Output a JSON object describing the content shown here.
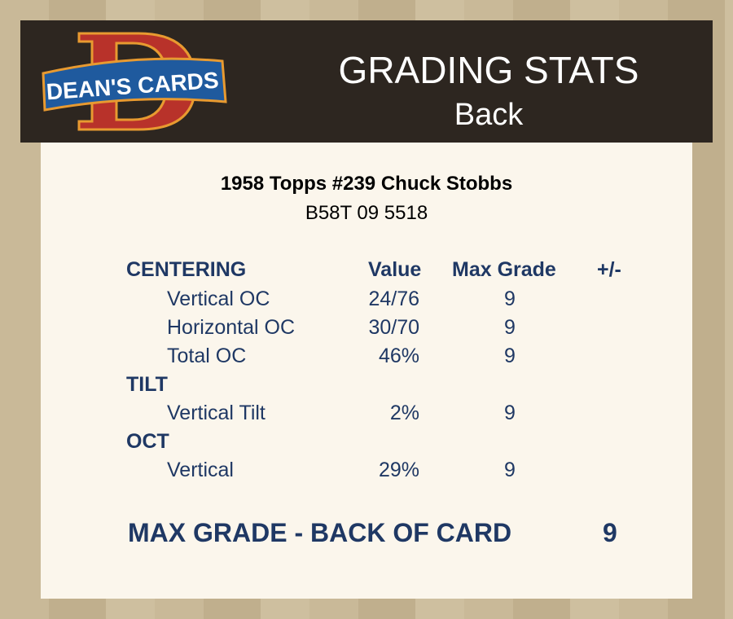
{
  "header": {
    "logo_text": "DEAN'S CARDS",
    "title": "GRADING STATS",
    "subtitle": "Back"
  },
  "card": {
    "name": "1958 Topps #239 Chuck Stobbs",
    "code": "B58T 09 5518"
  },
  "table": {
    "headers": {
      "category": "CENTERING",
      "value": "Value",
      "max_grade": "Max Grade",
      "plusminus": "+/-"
    },
    "rows": [
      {
        "label": "Vertical OC",
        "value": "24/76",
        "max": "9"
      },
      {
        "label": "Horizontal OC",
        "value": "30/70",
        "max": "9"
      },
      {
        "label": "Total OC",
        "value": "46%",
        "max": "9"
      },
      {
        "category": "TILT"
      },
      {
        "label": "Vertical Tilt",
        "value": "2%",
        "max": "9"
      },
      {
        "category": "OCT"
      },
      {
        "label": "Vertical",
        "value": "29%",
        "max": "9"
      }
    ]
  },
  "final": {
    "label": "MAX GRADE - BACK OF CARD",
    "value": "9"
  }
}
